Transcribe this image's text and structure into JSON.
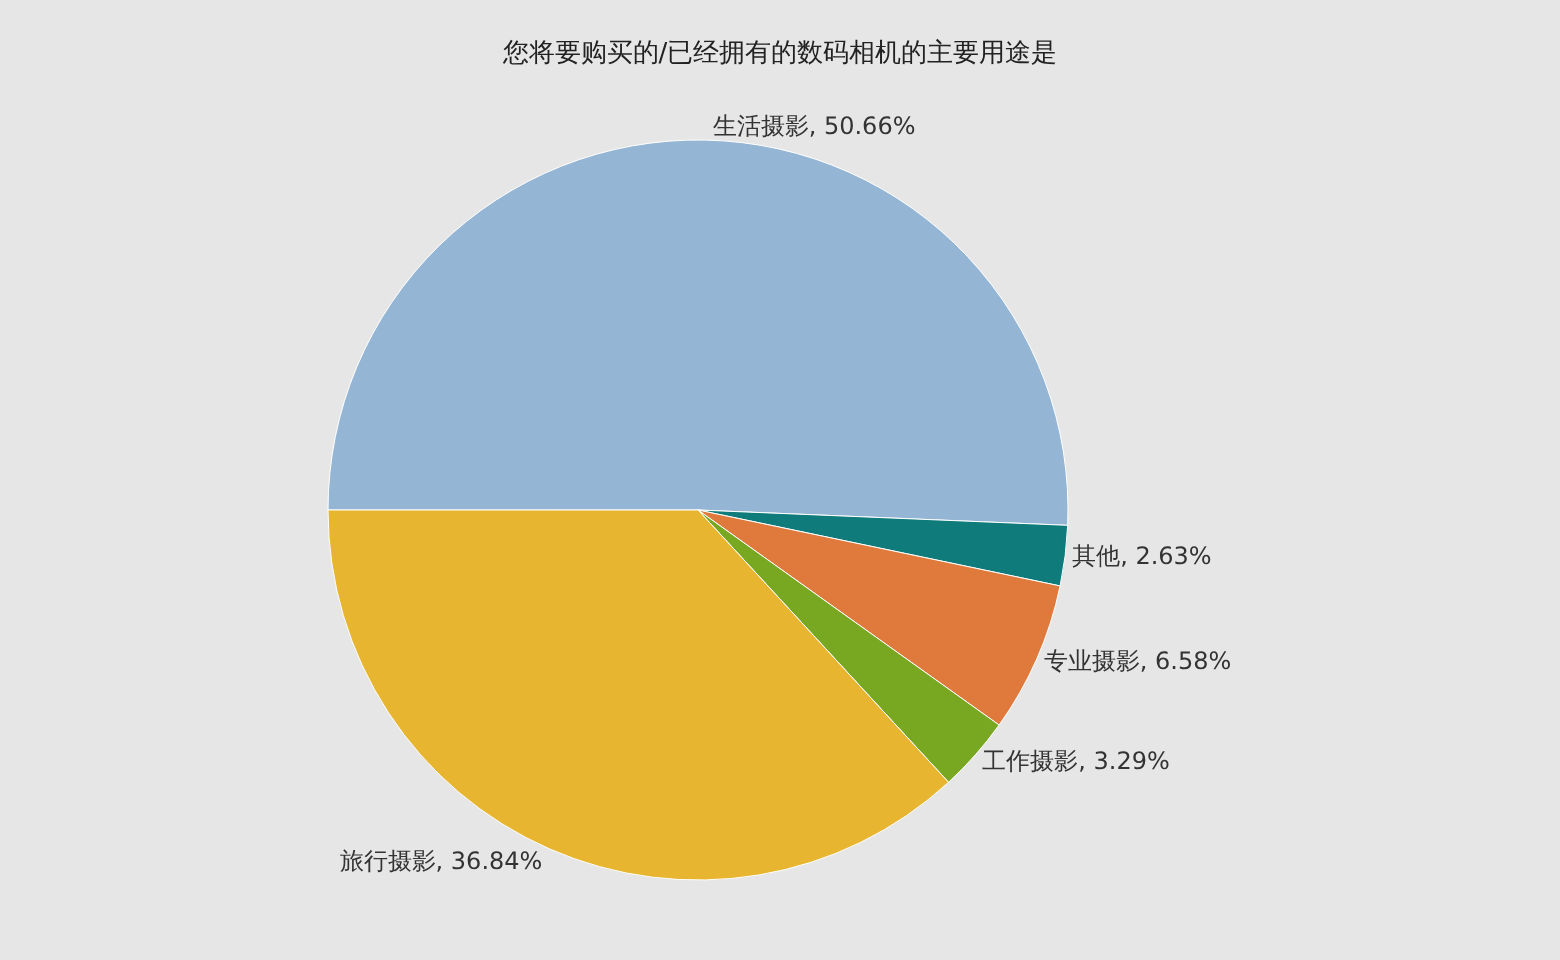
{
  "chart_data": {
    "type": "pie",
    "title": "您将要购买的/已经拥有的数码相机的主要用途是",
    "categories": [
      "生活摄影",
      "其他",
      "专业摄影",
      "工作摄影",
      "旅行摄影"
    ],
    "values": [
      50.66,
      2.63,
      6.58,
      3.29,
      36.84
    ],
    "value_labels": [
      "50.66%",
      "2.63%",
      "6.58%",
      "3.29%",
      "36.84%"
    ],
    "colors": [
      "#94b6d4",
      "#0f7b7b",
      "#e07a3c",
      "#78a822",
      "#e8b530"
    ],
    "legend": false
  }
}
